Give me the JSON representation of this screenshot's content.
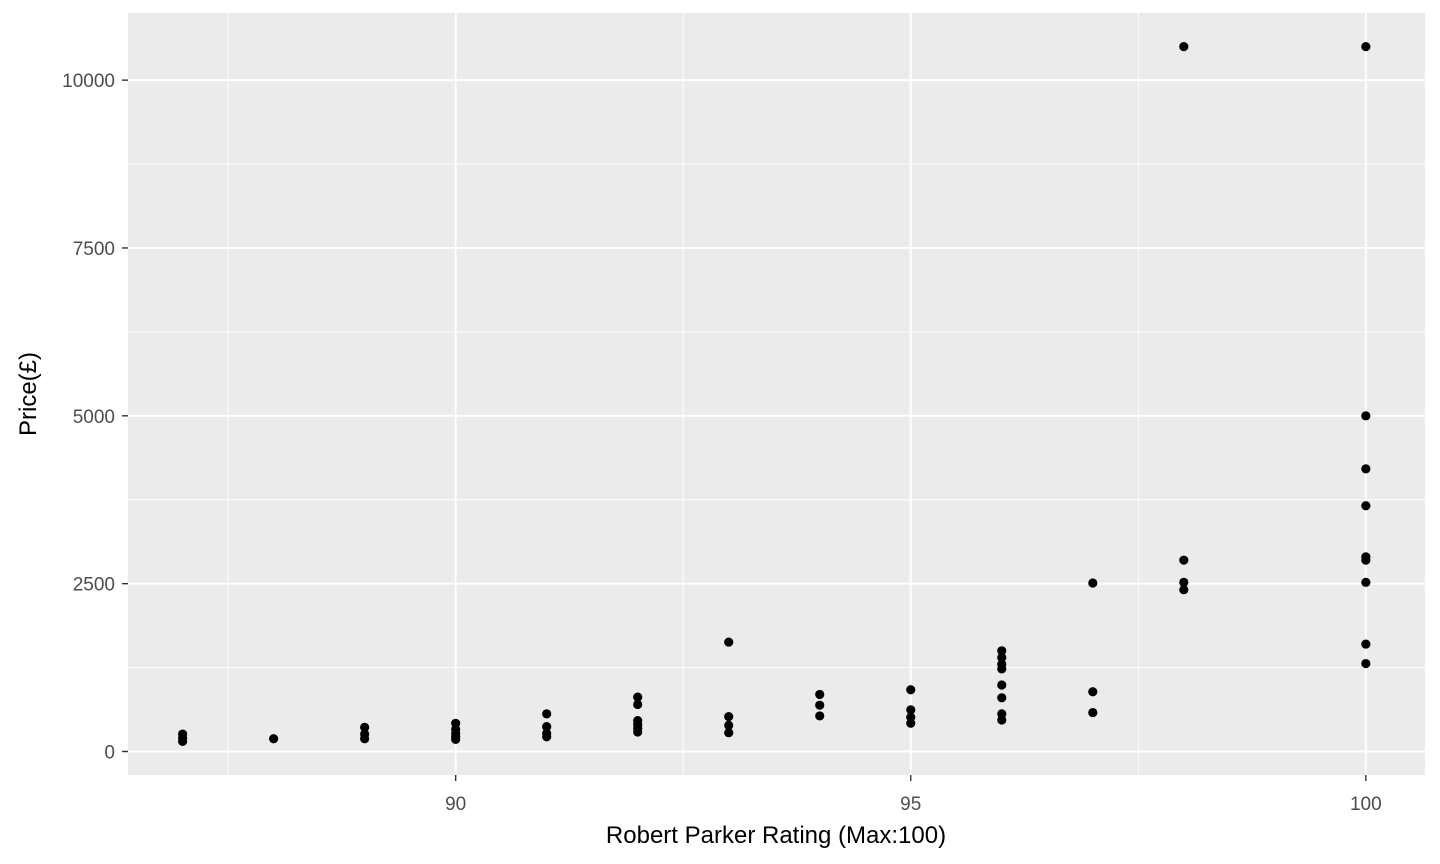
{
  "chart_data": {
    "type": "scatter",
    "title": "",
    "xlabel": "Robert Parker Rating (Max:100)",
    "ylabel": "Price(£)",
    "xlim": [
      86.4,
      100.65
    ],
    "ylim": [
      -350,
      11000
    ],
    "x_ticks": [
      90,
      95,
      100
    ],
    "x_tick_labels": [
      "90",
      "95",
      "100"
    ],
    "y_ticks": [
      0,
      2500,
      5000,
      7500,
      10000
    ],
    "y_tick_labels": [
      "0",
      "2500",
      "5000",
      "7500",
      "10000"
    ],
    "grid": true,
    "legend": "none",
    "colors": {
      "panel": "#ebebeb",
      "grid": "#ffffff",
      "point": "#000000",
      "tick": "#4d4d4d"
    },
    "points": [
      {
        "x": 87,
        "y": 260
      },
      {
        "x": 87,
        "y": 200
      },
      {
        "x": 87,
        "y": 150
      },
      {
        "x": 88,
        "y": 190
      },
      {
        "x": 89,
        "y": 360
      },
      {
        "x": 89,
        "y": 260
      },
      {
        "x": 89,
        "y": 190
      },
      {
        "x": 90,
        "y": 420
      },
      {
        "x": 90,
        "y": 330
      },
      {
        "x": 90,
        "y": 270
      },
      {
        "x": 90,
        "y": 220
      },
      {
        "x": 90,
        "y": 180
      },
      {
        "x": 91,
        "y": 560
      },
      {
        "x": 91,
        "y": 370
      },
      {
        "x": 91,
        "y": 270
      },
      {
        "x": 91,
        "y": 220
      },
      {
        "x": 92,
        "y": 810
      },
      {
        "x": 92,
        "y": 700
      },
      {
        "x": 92,
        "y": 460
      },
      {
        "x": 92,
        "y": 400
      },
      {
        "x": 92,
        "y": 340
      },
      {
        "x": 92,
        "y": 290
      },
      {
        "x": 93,
        "y": 1630
      },
      {
        "x": 93,
        "y": 520
      },
      {
        "x": 93,
        "y": 390
      },
      {
        "x": 93,
        "y": 280
      },
      {
        "x": 94,
        "y": 850
      },
      {
        "x": 94,
        "y": 690
      },
      {
        "x": 94,
        "y": 530
      },
      {
        "x": 95,
        "y": 920
      },
      {
        "x": 95,
        "y": 620
      },
      {
        "x": 95,
        "y": 510
      },
      {
        "x": 95,
        "y": 420
      },
      {
        "x": 96,
        "y": 1500
      },
      {
        "x": 96,
        "y": 1400
      },
      {
        "x": 96,
        "y": 1300
      },
      {
        "x": 96,
        "y": 1230
      },
      {
        "x": 96,
        "y": 990
      },
      {
        "x": 96,
        "y": 800
      },
      {
        "x": 96,
        "y": 560
      },
      {
        "x": 96,
        "y": 470
      },
      {
        "x": 97,
        "y": 2510
      },
      {
        "x": 97,
        "y": 890
      },
      {
        "x": 97,
        "y": 580
      },
      {
        "x": 98,
        "y": 10500
      },
      {
        "x": 98,
        "y": 2850
      },
      {
        "x": 98,
        "y": 2520
      },
      {
        "x": 98,
        "y": 2410
      },
      {
        "x": 100,
        "y": 10500
      },
      {
        "x": 100,
        "y": 5000
      },
      {
        "x": 100,
        "y": 4210
      },
      {
        "x": 100,
        "y": 3660
      },
      {
        "x": 100,
        "y": 2900
      },
      {
        "x": 100,
        "y": 2850
      },
      {
        "x": 100,
        "y": 2520
      },
      {
        "x": 100,
        "y": 1600
      },
      {
        "x": 100,
        "y": 1310
      }
    ]
  }
}
